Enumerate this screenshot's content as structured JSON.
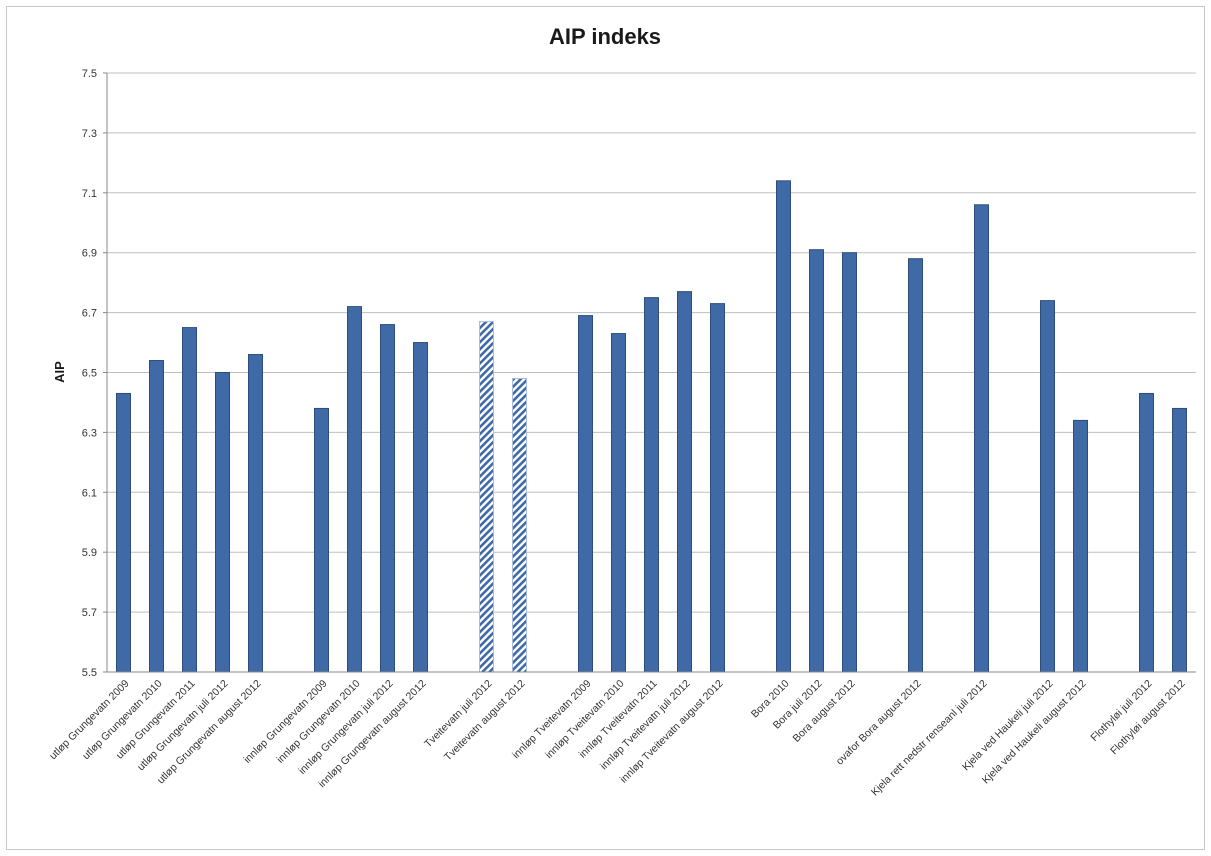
{
  "chart_data": {
    "type": "bar",
    "title": "AIP indeks",
    "xlabel": "",
    "ylabel": "AIP",
    "ylim": [
      5.5,
      7.5
    ],
    "yticks": [
      "5.5",
      "5.7",
      "5.9",
      "6.1",
      "6.3",
      "6.5",
      "6.7",
      "6.9",
      "7.1",
      "7.3",
      "7.5"
    ],
    "grid": true,
    "legend": "none",
    "colors": {
      "bar": "#3f6aa6",
      "bar_stroke": "#2c4d7d",
      "hatch_bar": "#a9bedc",
      "grid": "#bfbfbf"
    },
    "slot_count": 33,
    "points": [
      {
        "slot": 0,
        "label": "utløp Grungevatn 2009",
        "value": 6.43,
        "style": "solid"
      },
      {
        "slot": 1,
        "label": "utløp Grungevatn 2010",
        "value": 6.54,
        "style": "solid"
      },
      {
        "slot": 2,
        "label": "utløp Grungevatn 2011",
        "value": 6.65,
        "style": "solid"
      },
      {
        "slot": 3,
        "label": "utløp Grungevatn juli 2012",
        "value": 6.5,
        "style": "solid"
      },
      {
        "slot": 4,
        "label": "utløp Grungevatn august 2012",
        "value": 6.56,
        "style": "solid"
      },
      {
        "slot": 6,
        "label": "innløp Grungevatn 2009",
        "value": 6.38,
        "style": "solid"
      },
      {
        "slot": 7,
        "label": "innløp Grungevatn 2010",
        "value": 6.72,
        "style": "solid"
      },
      {
        "slot": 8,
        "label": "innløp Grungevatn juli 2012",
        "value": 6.66,
        "style": "solid"
      },
      {
        "slot": 9,
        "label": "innløp Grungevatn august 2012",
        "value": 6.6,
        "style": "solid"
      },
      {
        "slot": 11,
        "label": "Tveitevatn juli 2012",
        "value": 6.67,
        "style": "hatched"
      },
      {
        "slot": 12,
        "label": "Tveitevatn august 2012",
        "value": 6.48,
        "style": "hatched"
      },
      {
        "slot": 14,
        "label": "innløp Tveitevatn 2009",
        "value": 6.69,
        "style": "solid"
      },
      {
        "slot": 15,
        "label": "innløp Tveitevatn 2010",
        "value": 6.63,
        "style": "solid"
      },
      {
        "slot": 16,
        "label": "innløp Tveitevatn 2011",
        "value": 6.75,
        "style": "solid"
      },
      {
        "slot": 17,
        "label": "innløp Tveitevatn juli 2012",
        "value": 6.77,
        "style": "solid"
      },
      {
        "slot": 18,
        "label": "innløp Tveitevatn august 2012",
        "value": 6.73,
        "style": "solid"
      },
      {
        "slot": 20,
        "label": "Bora 2010",
        "value": 7.14,
        "style": "solid"
      },
      {
        "slot": 21,
        "label": "Bora juli 2012",
        "value": 6.91,
        "style": "solid"
      },
      {
        "slot": 22,
        "label": "Bora august 2012",
        "value": 6.9,
        "style": "solid"
      },
      {
        "slot": 24,
        "label": "ovafor Bora august 2012",
        "value": 6.88,
        "style": "solid"
      },
      {
        "slot": 26,
        "label": "Kjela rett nedstr renseanl juli 2012",
        "value": 7.06,
        "style": "solid"
      },
      {
        "slot": 28,
        "label": "Kjela ved Haukeli juli 2012",
        "value": 6.74,
        "style": "solid"
      },
      {
        "slot": 29,
        "label": "Kjela ved Haukeli august 2012",
        "value": 6.34,
        "style": "solid"
      },
      {
        "slot": 31,
        "label": "Flothyløi juli 2012",
        "value": 6.43,
        "style": "solid"
      },
      {
        "slot": 32,
        "label": "Flothyløi august 2012",
        "value": 6.38,
        "style": "solid"
      }
    ]
  }
}
